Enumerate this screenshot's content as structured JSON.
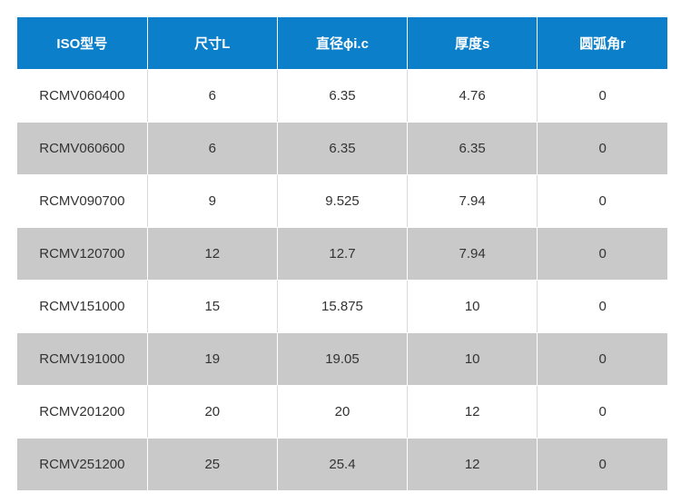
{
  "table": {
    "headers": [
      "ISO型号",
      "尺寸L",
      "直径ϕi.c",
      "厚度s",
      "圆弧角r"
    ],
    "rows": [
      [
        "RCMV060400",
        "6",
        "6.35",
        "4.76",
        "0"
      ],
      [
        "RCMV060600",
        "6",
        "6.35",
        "6.35",
        "0"
      ],
      [
        "RCMV090700",
        "9",
        "9.525",
        "7.94",
        "0"
      ],
      [
        "RCMV120700",
        "12",
        "12.7",
        "7.94",
        "0"
      ],
      [
        "RCMV151000",
        "15",
        "15.875",
        "10",
        "0"
      ],
      [
        "RCMV191000",
        "19",
        "19.05",
        "10",
        "0"
      ],
      [
        "RCMV201200",
        "20",
        "20",
        "12",
        "0"
      ],
      [
        "RCMV251200",
        "25",
        "25.4",
        "12",
        "0"
      ]
    ]
  },
  "colors": {
    "header_bg": "#0b7fc9",
    "stripe_bg": "#c9c9c9",
    "row_bg": "#ffffff"
  }
}
